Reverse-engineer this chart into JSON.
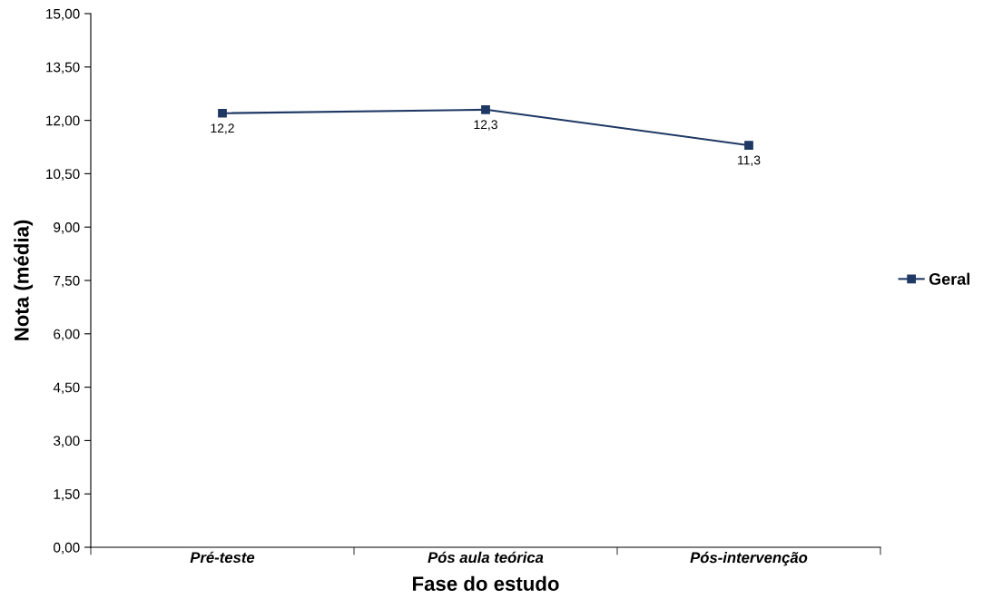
{
  "chart_data": {
    "type": "line",
    "xlabel": "Fase do estudo",
    "ylabel": "Nota (média)",
    "categories": [
      "Pré-teste",
      "Pós aula teórica",
      "Pós-intervenção"
    ],
    "series": [
      {
        "name": "Geral",
        "color": "#1f3864",
        "values": [
          12.2,
          12.3,
          11.3
        ],
        "value_labels": [
          "12,2",
          "12,3",
          "11,3"
        ]
      }
    ],
    "ylim": [
      0,
      15
    ],
    "yticks": [
      {
        "value": 0,
        "label": "0,00"
      },
      {
        "value": 1.5,
        "label": "1,50"
      },
      {
        "value": 3,
        "label": "3,00"
      },
      {
        "value": 4.5,
        "label": "4,50"
      },
      {
        "value": 6,
        "label": "6,00"
      },
      {
        "value": 7.5,
        "label": "7,50"
      },
      {
        "value": 9,
        "label": "9,00"
      },
      {
        "value": 10.5,
        "label": "10,50"
      },
      {
        "value": 12,
        "label": "12,00"
      },
      {
        "value": 13.5,
        "label": "13,50"
      },
      {
        "value": 15,
        "label": "15,00"
      }
    ],
    "grid": false,
    "legend": "right",
    "marker": "square",
    "line_style": "solid"
  }
}
